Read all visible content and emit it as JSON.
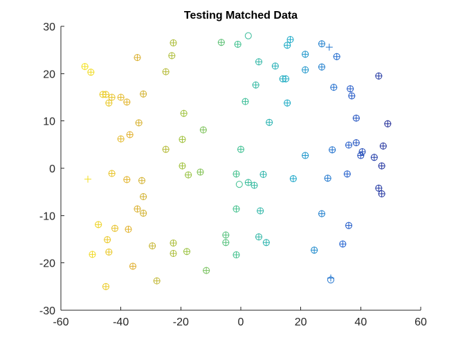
{
  "chart_data": {
    "type": "scatter",
    "title": "Testing Matched Data",
    "xlabel": "",
    "ylabel": "",
    "xlim": [
      -60,
      60
    ],
    "ylim": [
      -30,
      30
    ],
    "xticks": [
      -60,
      -40,
      -20,
      0,
      20,
      40,
      60
    ],
    "yticks": [
      -30,
      -20,
      -10,
      0,
      10,
      20,
      30
    ],
    "grid": false,
    "legend": "none",
    "box": "left-bottom",
    "colormap": [
      "#1f1f8a",
      "#1f5fcf",
      "#18a8c8",
      "#3ec08e",
      "#9cc13a",
      "#e0ad2a",
      "#f5e81f"
    ],
    "series": [
      {
        "marker": "circle",
        "points": [
          [
            -52,
            21.5
          ],
          [
            -50,
            20.3
          ],
          [
            -46,
            15.6
          ],
          [
            -45,
            15.6
          ],
          [
            -43,
            15.0
          ],
          [
            -44,
            13.8
          ],
          [
            -40,
            15.0
          ],
          [
            -38,
            14.0
          ],
          [
            -34.5,
            23.4
          ],
          [
            -25,
            20.4
          ],
          [
            -23,
            23.8
          ],
          [
            -22.5,
            26.5
          ],
          [
            -32.5,
            15.7
          ],
          [
            -34,
            9.6
          ],
          [
            -37,
            7.1
          ],
          [
            -40,
            6.2
          ],
          [
            -19,
            11.6
          ],
          [
            -25,
            4.0
          ],
          [
            -19.5,
            6.1
          ],
          [
            -12.5,
            8.1
          ],
          [
            -43,
            -1.1
          ],
          [
            -38,
            -2.4
          ],
          [
            -33,
            -2.6
          ],
          [
            -32.5,
            -6.0
          ],
          [
            -19.5,
            0.5
          ],
          [
            -17.5,
            -1.4
          ],
          [
            -13.5,
            -0.8
          ],
          [
            -47.5,
            -11.9
          ],
          [
            -42,
            -12.7
          ],
          [
            -37.5,
            -12.9
          ],
          [
            -34.5,
            -8.6
          ],
          [
            -32.5,
            -9.5
          ],
          [
            -44.5,
            -15.1
          ],
          [
            -49.5,
            -18.2
          ],
          [
            -44,
            -17.7
          ],
          [
            -36,
            -20.7
          ],
          [
            -29.5,
            -16.4
          ],
          [
            -22.5,
            -15.8
          ],
          [
            -22.5,
            -18.0
          ],
          [
            -18,
            -17.6
          ],
          [
            -28,
            -23.8
          ],
          [
            -45,
            -25.0
          ],
          [
            -11.5,
            -21.6
          ],
          [
            -6.5,
            26.6
          ],
          [
            -1,
            26.2
          ],
          [
            2.5,
            28.0
          ],
          [
            6,
            22.5
          ],
          [
            11.5,
            21.6
          ],
          [
            16.5,
            27.2
          ],
          [
            15.5,
            26.0
          ],
          [
            21.5,
            24.1
          ],
          [
            27,
            26.3
          ],
          [
            32,
            23.6
          ],
          [
            5,
            17.6
          ],
          [
            14,
            18.9
          ],
          [
            15,
            18.9
          ],
          [
            21.5,
            20.8
          ],
          [
            27,
            21.4
          ],
          [
            31,
            17.1
          ],
          [
            36.5,
            16.8
          ],
          [
            37,
            15.3
          ],
          [
            46,
            19.5
          ],
          [
            1.5,
            14.1
          ],
          [
            9.5,
            9.7
          ],
          [
            15.5,
            13.8
          ],
          [
            38.5,
            10.6
          ],
          [
            49,
            9.4
          ],
          [
            0,
            4.0
          ],
          [
            21.5,
            2.7
          ],
          [
            30.5,
            3.9
          ],
          [
            36,
            4.9
          ],
          [
            38.5,
            5.4
          ],
          [
            40,
            2.7
          ],
          [
            40.5,
            3.5
          ],
          [
            44.5,
            2.3
          ],
          [
            47.5,
            4.7
          ],
          [
            47,
            0.5
          ],
          [
            -1.5,
            -1.2
          ],
          [
            -0.5,
            -3.4
          ],
          [
            2.5,
            -3.0
          ],
          [
            4.5,
            -3.6
          ],
          [
            7.5,
            -1.3
          ],
          [
            17.5,
            -2.2
          ],
          [
            29,
            -2.1
          ],
          [
            35.5,
            -1.2
          ],
          [
            46,
            -4.2
          ],
          [
            47,
            -5.4
          ],
          [
            -1.5,
            -8.6
          ],
          [
            6.5,
            -9.0
          ],
          [
            27,
            -9.6
          ],
          [
            36,
            -12.1
          ],
          [
            -5,
            -14.1
          ],
          [
            -5,
            -15.7
          ],
          [
            6,
            -14.5
          ],
          [
            8.5,
            -15.7
          ],
          [
            24.5,
            -17.3
          ],
          [
            34,
            -16.0
          ],
          [
            -1.5,
            -18.3
          ],
          [
            30,
            -23.6
          ]
        ]
      },
      {
        "marker": "plus",
        "points": [
          [
            -52,
            21.5
          ],
          [
            -50,
            20.3
          ],
          [
            -46,
            15.6
          ],
          [
            -45,
            15.6
          ],
          [
            -43,
            15.0
          ],
          [
            -44,
            13.8
          ],
          [
            -40,
            15.0
          ],
          [
            -38,
            14.0
          ],
          [
            -34.5,
            23.4
          ],
          [
            -25,
            20.4
          ],
          [
            -23,
            23.8
          ],
          [
            -22.5,
            26.5
          ],
          [
            -32.5,
            15.7
          ],
          [
            -34,
            9.6
          ],
          [
            -37,
            7.1
          ],
          [
            -40,
            6.2
          ],
          [
            -19,
            11.6
          ],
          [
            -25,
            4.0
          ],
          [
            -19.5,
            6.1
          ],
          [
            -12.5,
            8.1
          ],
          [
            -43,
            -1.1
          ],
          [
            -38,
            -2.4
          ],
          [
            -33,
            -2.6
          ],
          [
            -32.5,
            -6.0
          ],
          [
            -19.5,
            0.5
          ],
          [
            -17.5,
            -1.4
          ],
          [
            -13.5,
            -0.8
          ],
          [
            -47.5,
            -11.9
          ],
          [
            -42,
            -12.7
          ],
          [
            -37.5,
            -12.9
          ],
          [
            -34.5,
            -8.6
          ],
          [
            -32.5,
            -9.5
          ],
          [
            -44.5,
            -15.1
          ],
          [
            -49.5,
            -18.2
          ],
          [
            -44,
            -17.7
          ],
          [
            -36,
            -20.7
          ],
          [
            -29.5,
            -16.4
          ],
          [
            -22.5,
            -15.8
          ],
          [
            -22.5,
            -18.0
          ],
          [
            -18,
            -17.6
          ],
          [
            -28,
            -23.8
          ],
          [
            -45,
            -25.0
          ],
          [
            -11.5,
            -21.6
          ],
          [
            -6.5,
            26.6
          ],
          [
            -1,
            26.2
          ],
          [
            29.5,
            25.6
          ],
          [
            6,
            22.5
          ],
          [
            11.5,
            21.6
          ],
          [
            16.5,
            27.2
          ],
          [
            15.5,
            26.0
          ],
          [
            21.5,
            24.1
          ],
          [
            27,
            26.3
          ],
          [
            32,
            23.6
          ],
          [
            5,
            17.6
          ],
          [
            14,
            18.9
          ],
          [
            15,
            18.9
          ],
          [
            21.5,
            20.8
          ],
          [
            27,
            21.4
          ],
          [
            31,
            17.1
          ],
          [
            36.5,
            16.8
          ],
          [
            37,
            15.3
          ],
          [
            46,
            19.5
          ],
          [
            1.5,
            14.1
          ],
          [
            9.5,
            9.7
          ],
          [
            15.5,
            13.8
          ],
          [
            38.5,
            10.6
          ],
          [
            49,
            9.4
          ],
          [
            0,
            4.0
          ],
          [
            21.5,
            2.7
          ],
          [
            30.5,
            3.9
          ],
          [
            36,
            4.9
          ],
          [
            38.5,
            5.4
          ],
          [
            40,
            2.7
          ],
          [
            40.5,
            3.5
          ],
          [
            44.5,
            2.3
          ],
          [
            47.5,
            4.7
          ],
          [
            47,
            0.5
          ],
          [
            -1.5,
            -1.2
          ],
          [
            -51,
            -2.3
          ],
          [
            2.5,
            -3.0
          ],
          [
            4.5,
            -3.6
          ],
          [
            7.5,
            -1.3
          ],
          [
            17.5,
            -2.2
          ],
          [
            29,
            -2.1
          ],
          [
            35.5,
            -1.2
          ],
          [
            46,
            -4.2
          ],
          [
            47,
            -5.4
          ],
          [
            -1.5,
            -8.6
          ],
          [
            6.5,
            -9.0
          ],
          [
            27,
            -9.6
          ],
          [
            36,
            -12.1
          ],
          [
            -5,
            -14.1
          ],
          [
            -5,
            -15.7
          ],
          [
            6,
            -14.5
          ],
          [
            8.5,
            -15.7
          ],
          [
            24.5,
            -17.3
          ],
          [
            34,
            -16.0
          ],
          [
            -1.5,
            -18.3
          ],
          [
            30,
            -23.2
          ]
        ]
      }
    ]
  }
}
